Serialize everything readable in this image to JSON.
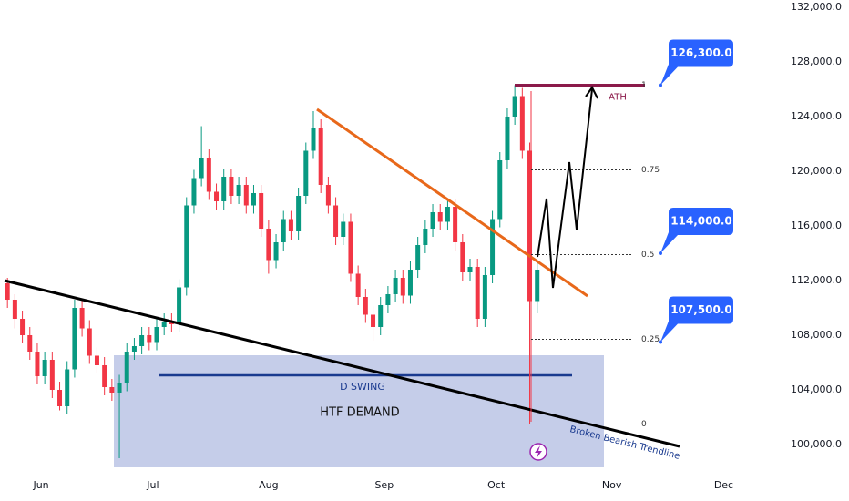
{
  "chart_data": {
    "type": "candlestick",
    "x": [
      -9,
      -7,
      -5,
      -3,
      -1,
      1,
      3,
      5,
      7,
      9,
      11,
      13,
      15,
      17,
      19,
      21,
      23,
      25,
      27,
      29,
      31,
      33,
      35,
      37,
      39,
      41,
      43,
      45,
      47,
      49,
      51,
      53,
      55,
      57,
      59,
      61,
      63,
      65,
      67,
      69,
      71,
      73,
      75,
      77,
      79,
      81,
      83,
      85,
      87,
      89,
      91,
      93,
      95,
      97,
      99,
      101,
      103,
      105,
      107,
      109,
      111,
      113,
      115,
      117,
      119,
      121,
      123,
      125,
      127,
      129,
      131,
      133
    ],
    "open": [
      111800,
      110600,
      109200,
      108000,
      106800,
      105000,
      106200,
      104000,
      102800,
      105500,
      110000,
      108500,
      106500,
      105800,
      104200,
      103800,
      104500,
      106800,
      107200,
      108000,
      107500,
      108600,
      109000,
      108800,
      111500,
      117500,
      119500,
      121000,
      118500,
      117800,
      119600,
      118200,
      119000,
      117500,
      118400,
      115800,
      113500,
      114800,
      116500,
      115600,
      118200,
      121500,
      123200,
      119000,
      117500,
      115200,
      116300,
      112500,
      110800,
      109500,
      108600,
      110200,
      111000,
      112200,
      110900,
      112800,
      114600,
      115800,
      117000,
      116300,
      117400,
      114800,
      112600,
      113000,
      109200,
      112400,
      116500,
      120800,
      124000,
      125500,
      121500,
      110500
    ],
    "high": [
      112200,
      111000,
      109800,
      108600,
      107400,
      106800,
      106800,
      104600,
      106100,
      110600,
      110600,
      109100,
      107100,
      106400,
      104800,
      105100,
      107400,
      107800,
      108600,
      108600,
      109200,
      109600,
      109600,
      112100,
      118100,
      120100,
      123300,
      121600,
      119100,
      120200,
      120200,
      119600,
      119600,
      119000,
      119000,
      116400,
      115400,
      117100,
      117100,
      118800,
      122100,
      124400,
      123800,
      119600,
      118100,
      116900,
      116900,
      113100,
      111400,
      110100,
      110800,
      111600,
      112800,
      112800,
      113400,
      115200,
      116400,
      117600,
      117600,
      118000,
      118000,
      115400,
      113600,
      113600,
      113000,
      117100,
      121400,
      124600,
      126300,
      126100,
      122100,
      113400
    ],
    "low": [
      110000,
      108500,
      107400,
      106200,
      104400,
      104400,
      103400,
      102500,
      102200,
      104900,
      107900,
      105900,
      105200,
      103600,
      103200,
      99000,
      103900,
      106200,
      106600,
      106900,
      106900,
      108000,
      108200,
      108200,
      110900,
      116900,
      118900,
      117900,
      117200,
      117200,
      117600,
      117600,
      116900,
      116900,
      115200,
      112500,
      112900,
      114200,
      115000,
      115000,
      117600,
      120900,
      118400,
      116900,
      114600,
      114600,
      111900,
      110200,
      108900,
      107600,
      108000,
      109600,
      110400,
      110300,
      110300,
      112200,
      114000,
      115200,
      115700,
      115700,
      114200,
      112000,
      112000,
      108600,
      108600,
      111800,
      115900,
      120200,
      123400,
      120900,
      101500,
      109600
    ],
    "close": [
      110600,
      109200,
      108000,
      106800,
      105000,
      106200,
      104000,
      102800,
      105500,
      110000,
      108500,
      106500,
      105800,
      104200,
      103800,
      104500,
      106800,
      107200,
      108000,
      107500,
      108600,
      109000,
      108800,
      111500,
      117500,
      119500,
      121000,
      118500,
      117800,
      119600,
      118200,
      119000,
      117500,
      118400,
      115800,
      113500,
      114800,
      116500,
      115600,
      118200,
      121500,
      123200,
      119000,
      117500,
      115200,
      116300,
      112500,
      110800,
      109500,
      108600,
      110200,
      111000,
      112200,
      110900,
      112800,
      114600,
      115800,
      117000,
      116300,
      117400,
      114800,
      112600,
      113000,
      109200,
      112400,
      116500,
      120800,
      124000,
      125500,
      121500,
      110500,
      112800
    ],
    "up_color": "#089981",
    "down_color": "#f23645",
    "xlim": [
      -11,
      199
    ],
    "xticks": [
      {
        "value": 0,
        "label": "Jun"
      },
      {
        "value": 30,
        "label": "Jul"
      },
      {
        "value": 61,
        "label": "Aug"
      },
      {
        "value": 92,
        "label": "Sep"
      },
      {
        "value": 122,
        "label": "Oct"
      },
      {
        "value": 153,
        "label": "Nov"
      },
      {
        "value": 183,
        "label": "Dec"
      }
    ],
    "ylim": [
      98200,
      132533
    ],
    "yticks": [
      {
        "value": 132000,
        "label": "132,000.0"
      },
      {
        "value": 128000,
        "label": "128,000.0"
      },
      {
        "value": 124000,
        "label": "124,000.0"
      },
      {
        "value": 120000,
        "label": "120,000.0"
      },
      {
        "value": 116000,
        "label": "116,000.0"
      },
      {
        "value": 112000,
        "label": "112,000.0"
      },
      {
        "value": 108000,
        "label": "108,000.0"
      },
      {
        "value": 104000,
        "label": "104,000.0"
      },
      {
        "value": 100000,
        "label": "100,000.0"
      }
    ],
    "fib_levels": [
      {
        "value": 126300,
        "label": "1"
      },
      {
        "value": 120100,
        "label": "0.75"
      },
      {
        "value": 113900,
        "label": "0.5"
      },
      {
        "value": 107700,
        "label": "0.25"
      },
      {
        "value": 101500,
        "label": "0"
      }
    ],
    "price_tags": [
      {
        "value": 126300,
        "label": "126,300.0"
      },
      {
        "value": 114000,
        "label": "114,000.0"
      },
      {
        "value": 107500,
        "label": "107,500.0"
      }
    ],
    "annotations": {
      "ath": "ATH",
      "swing": "D SWING",
      "zone": "HTF DEMAND",
      "trendline": "Broken Bearish Trendline"
    }
  }
}
